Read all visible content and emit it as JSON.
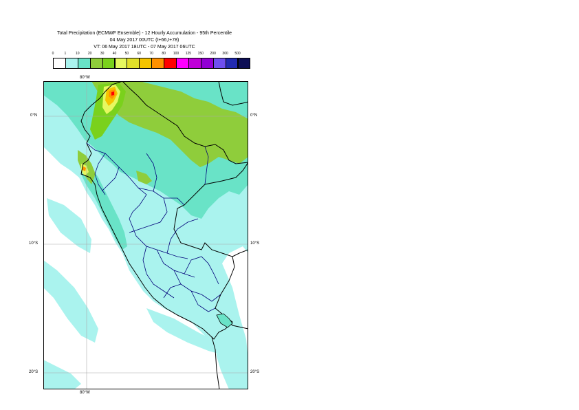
{
  "title": {
    "line1": "Total Precipitation (ECMWF Ensemble) - 12 Hourly Accumulation - 95th Percentile",
    "line2": "04 May 2017 00UTC (t+66,t+78)",
    "line3": "VT: 06 May 2017 18UTC - 07 May 2017 06UTC"
  },
  "colorbar": {
    "thresholds": [
      "0",
      "1",
      "10",
      "20",
      "30",
      "40",
      "50",
      "60",
      "70",
      "80",
      "100",
      "125",
      "150",
      "200",
      "300",
      "500"
    ],
    "colors": [
      "#ffffff",
      "#aaf3ee",
      "#69e3c7",
      "#8fcd3b",
      "#7ad11c",
      "#e6f860",
      "#e1df2a",
      "#f5c400",
      "#ff9100",
      "#ff0000",
      "#ff00ff",
      "#c000d8",
      "#9200d4",
      "#6f4fef",
      "#222ab0",
      "#0e0f55"
    ]
  },
  "map": {
    "lon_label_top": "80°W",
    "lon_label_bottom": "80°W",
    "lat_labels": [
      "0°N",
      "10°S",
      "20°S"
    ],
    "colors": {
      "border": "#000000",
      "admin": "#00007a",
      "grid": "#aaaaaa",
      "frame": "#000000"
    }
  }
}
